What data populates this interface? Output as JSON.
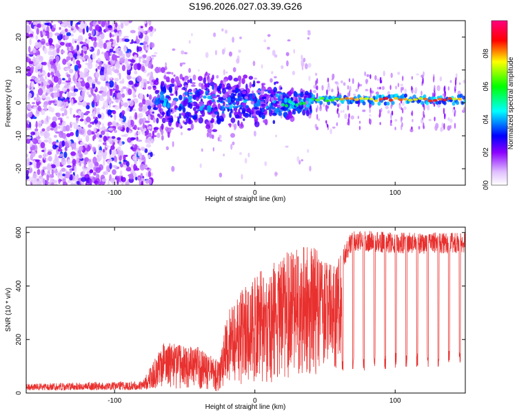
{
  "title": "S196.2026.027.03.39.G26",
  "chart_data": [
    {
      "type": "heatmap",
      "title": "S196.2026.027.03.39.G26",
      "xlabel": "Height of straight line (km)",
      "ylabel": "Frequency (Hz)",
      "xlim": [
        -163,
        150
      ],
      "ylim": [
        -25,
        25
      ],
      "x_ticks": [
        -100,
        0,
        100
      ],
      "y_ticks": [
        -20,
        -10,
        0,
        10,
        20
      ],
      "colorbar": {
        "label": "Normalized spectral amplitude",
        "range": [
          0,
          1
        ],
        "ticks": [
          0.0,
          0.2,
          0.4,
          0.6,
          0.8
        ],
        "colors": [
          "#ffffff",
          "#8a00ff",
          "#0000ff",
          "#00ffff",
          "#00ff00",
          "#ffff00",
          "#ff0000",
          "#ff0080"
        ]
      },
      "description_regions": [
        {
          "x_range": [
            -163,
            -72
          ],
          "freq_range": [
            -25,
            25
          ],
          "amplitude": "scattered 0.1-0.25"
        },
        {
          "x_range": [
            -72,
            40
          ],
          "freq_range": [
            -8,
            8
          ],
          "amplitude": "0.2-0.5 around 0 Hz"
        },
        {
          "x_range": [
            40,
            150
          ],
          "freq_range": [
            0,
            2
          ],
          "amplitude": "0.6-0.95 narrow line near 1 Hz"
        }
      ]
    },
    {
      "type": "line",
      "xlabel": "Height of straight line (km)",
      "ylabel": "SNR (10 * v/v)",
      "xlim": [
        -163,
        150
      ],
      "ylim": [
        0,
        620
      ],
      "x_ticks": [
        -100,
        0,
        100
      ],
      "y_ticks": [
        0,
        200,
        400,
        600
      ],
      "series_color": "#e8312f",
      "envelope": [
        {
          "x": -163,
          "low": 10,
          "high": 35
        },
        {
          "x": -80,
          "low": 12,
          "high": 45
        },
        {
          "x": -65,
          "low": 20,
          "high": 190
        },
        {
          "x": -40,
          "low": 10,
          "high": 170
        },
        {
          "x": -25,
          "low": 5,
          "high": 120
        },
        {
          "x": -20,
          "low": 40,
          "high": 300
        },
        {
          "x": -10,
          "low": 30,
          "high": 380
        },
        {
          "x": 0,
          "low": 30,
          "high": 440
        },
        {
          "x": 20,
          "low": 40,
          "high": 520
        },
        {
          "x": 40,
          "low": 60,
          "high": 560
        },
        {
          "x": 55,
          "low": 80,
          "high": 480
        },
        {
          "x": 70,
          "low": 80,
          "high": 610
        },
        {
          "x": 100,
          "low": 90,
          "high": 600
        },
        {
          "x": 150,
          "low": 100,
          "high": 600
        }
      ]
    }
  ]
}
